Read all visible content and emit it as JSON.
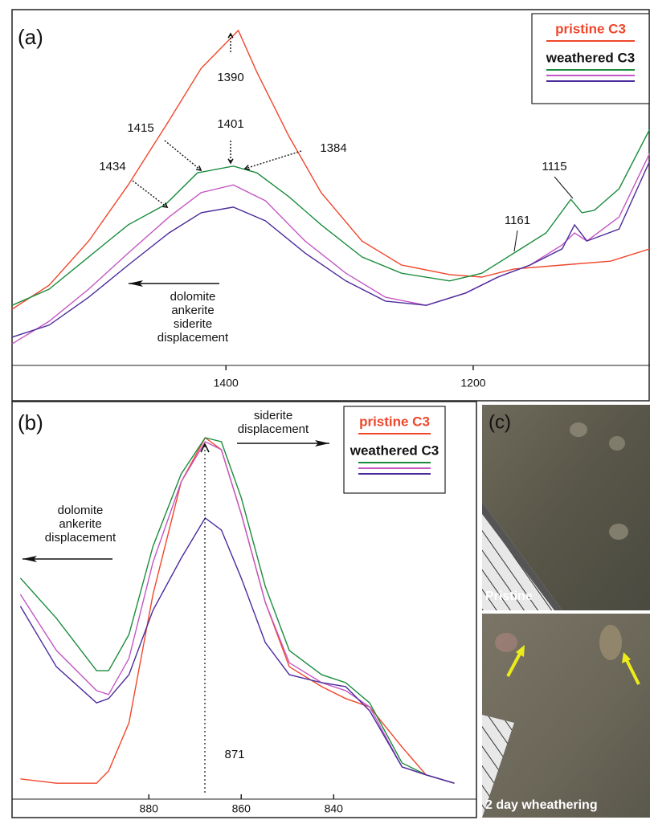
{
  "chart_data": [
    {
      "type": "line",
      "panel_label": "(a)",
      "xlim": [
        1573,
        1057
      ],
      "ylim": [
        0,
        100
      ],
      "xticks": [
        1400,
        1200
      ],
      "series": [
        {
          "name": "pristine C3",
          "color": "#f0462a",
          "x": [
            1573,
            1543,
            1511,
            1479,
            1446,
            1420,
            1390,
            1375,
            1349,
            1323,
            1290,
            1258,
            1219,
            1193,
            1167,
            1128,
            1089,
            1057
          ],
          "values": [
            15.9,
            22.7,
            35.2,
            51.1,
            69.3,
            84.1,
            94.8,
            83,
            64.8,
            48.9,
            35.2,
            28.4,
            25.7,
            25,
            27.3,
            28.4,
            29.5,
            33
          ]
        },
        {
          "name": "weathered C3",
          "color": "#1a8c3c",
          "x": [
            1573,
            1543,
            1511,
            1479,
            1449,
            1423,
            1394,
            1375,
            1349,
            1323,
            1290,
            1258,
            1219,
            1193,
            1167,
            1141,
            1121,
            1112,
            1102,
            1082,
            1057
          ],
          "values": [
            17,
            21.6,
            30.7,
            39.8,
            45.5,
            54.5,
            56.4,
            54.5,
            47.7,
            39.8,
            30.7,
            26.1,
            23.9,
            26.1,
            31.8,
            37.5,
            47,
            43.2,
            43.9,
            50,
            67
          ]
        },
        {
          "color": "#c457c4",
          "x": [
            1573,
            1543,
            1511,
            1479,
            1446,
            1420,
            1394,
            1368,
            1336,
            1303,
            1271,
            1238,
            1206,
            1180,
            1154,
            1128,
            1118,
            1108,
            1082,
            1057
          ],
          "values": [
            6.1,
            12.5,
            21.6,
            31.8,
            42,
            48.9,
            51.1,
            46.6,
            35.2,
            26.1,
            19.3,
            17,
            20.5,
            25,
            28.4,
            34.1,
            37.5,
            35.2,
            42,
            60.2
          ]
        },
        {
          "color": "#4b2c9c",
          "x": [
            1573,
            1543,
            1511,
            1479,
            1446,
            1420,
            1394,
            1368,
            1336,
            1303,
            1271,
            1238,
            1206,
            1180,
            1154,
            1128,
            1118,
            1108,
            1082,
            1057
          ],
          "values": [
            8,
            11.4,
            19.3,
            28.4,
            37.5,
            43.2,
            44.8,
            40.9,
            31.8,
            23.9,
            18.2,
            17,
            20.5,
            25,
            28.4,
            33,
            39.8,
            35.2,
            38.6,
            58
          ]
        }
      ],
      "annotations": [
        "1390",
        "1401",
        "1415",
        "1384",
        "1434",
        "1115",
        "1161"
      ],
      "displacement_note": [
        "dolomite",
        "ankerite",
        "siderite",
        "displacement"
      ]
    },
    {
      "type": "line",
      "panel_label": "(b)",
      "xlim": [
        909.6,
        809.1
      ],
      "ylim": [
        0,
        100
      ],
      "xticks": [
        880,
        860,
        840
      ],
      "series": [
        {
          "name": "pristine C3",
          "color": "#f0462a",
          "x": [
            907.8,
            900,
            891.3,
            888.7,
            884.3,
            879.1,
            873,
            867.8,
            864.3,
            860,
            854.8,
            849.6,
            842.6,
            837.4,
            832.2,
            825.2,
            820,
            813.9
          ],
          "values": [
            5.1,
            4,
            4,
            7.1,
            19.2,
            51.5,
            79.8,
            90.9,
            87.9,
            71.7,
            49.5,
            33.3,
            28.3,
            25.3,
            23.2,
            13.1,
            6.1,
            4
          ]
        },
        {
          "name": "weathered C3",
          "color": "#1a8c3c",
          "x": [
            907.8,
            900,
            891.3,
            888.7,
            884.3,
            879.1,
            873,
            867.8,
            864.3,
            860,
            854.8,
            849.6,
            842.6,
            837.4,
            832.2,
            825.2,
            820,
            813.9
          ],
          "values": [
            55.6,
            45.5,
            32.3,
            32.3,
            41.4,
            63.6,
            81.8,
            90.9,
            89.9,
            75.8,
            53.5,
            37.4,
            31.3,
            29.3,
            24.2,
            9.1,
            6.1,
            4
          ]
        },
        {
          "color": "#c457c4",
          "x": [
            907.8,
            900,
            891.3,
            888.7,
            884.3,
            879.1,
            873,
            867.8,
            864.3,
            860,
            854.8,
            849.6,
            842.6,
            837.4,
            832.2,
            825.2,
            820,
            813.9
          ],
          "values": [
            51.5,
            37.4,
            27.3,
            26.3,
            35.4,
            59.6,
            79.8,
            89.9,
            87.9,
            71.7,
            49.5,
            34.3,
            29.3,
            27.3,
            23.2,
            8.1,
            6.1,
            4
          ]
        },
        {
          "color": "#4b2c9c",
          "x": [
            907.8,
            900,
            891.3,
            888.7,
            884.3,
            879.1,
            873,
            867.8,
            864.3,
            860,
            854.8,
            849.6,
            842.6,
            837.4,
            832.2,
            825.2,
            820,
            813.9
          ],
          "values": [
            48.5,
            33.3,
            24.2,
            25.3,
            31.3,
            47.5,
            60.6,
            70.7,
            67.7,
            55.6,
            39.4,
            31.3,
            29.3,
            28.3,
            22.2,
            8.1,
            6.1,
            4
          ]
        }
      ],
      "annotations": [
        "871"
      ],
      "displacement_right": [
        "siderite",
        "displacement"
      ],
      "displacement_left": [
        "dolomite",
        "ankerite",
        "displacement"
      ]
    }
  ],
  "photo_panel": {
    "label": "(c)",
    "top_caption": "Pristine",
    "bottom_caption": "2 day wheathering"
  }
}
